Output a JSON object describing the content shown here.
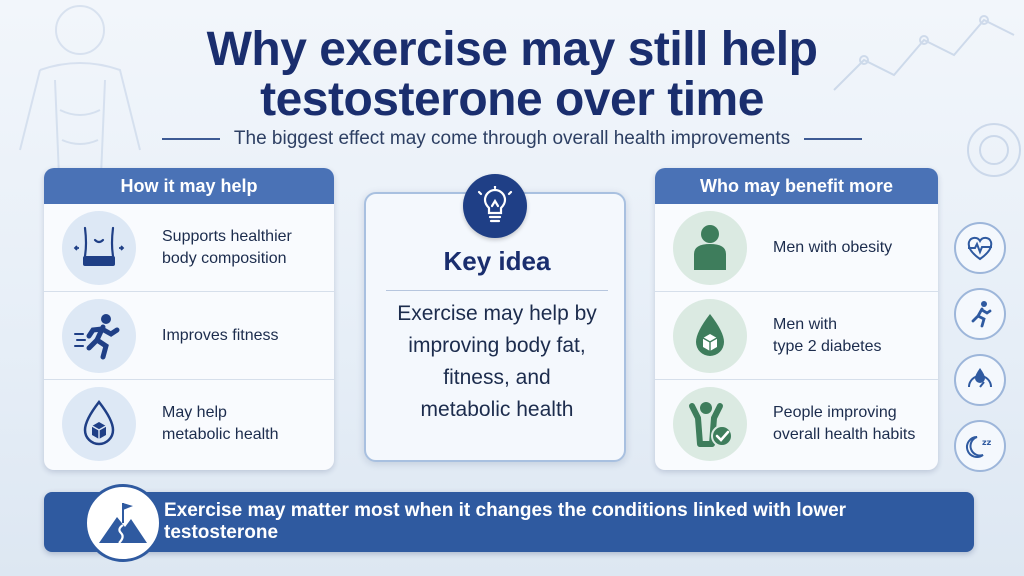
{
  "title": {
    "line1": "Why exercise may still help",
    "line2": "testosterone over time"
  },
  "subtitle": "The biggest effect may come through overall health improvements",
  "left_panel": {
    "heading": "How it may help",
    "items": [
      {
        "icon": "waist-icon",
        "label": "Supports healthier\nbody composition"
      },
      {
        "icon": "runner-icon",
        "label": "Improves fitness"
      },
      {
        "icon": "drop-cube-icon",
        "label": "May help\nmetabolic health"
      }
    ]
  },
  "center": {
    "icon": "lightbulb-icon",
    "title": "Key idea",
    "text": "Exercise may help by\nimproving body fat,\nfitness, and\nmetabolic health"
  },
  "right_panel": {
    "heading": "Who may benefit more",
    "items": [
      {
        "icon": "person-icon",
        "label": "Men with obesity"
      },
      {
        "icon": "drop-cube-icon",
        "label": "Men with\ntype 2 diabetes"
      },
      {
        "icon": "person-check-icon",
        "label": "People improving\noverall health habits"
      }
    ]
  },
  "side_icons": [
    "heartbeat-icon",
    "runner-icon",
    "drop-scale-icon",
    "moon-sleep-icon"
  ],
  "banner": {
    "icon": "mountain-flag-icon",
    "text": "Exercise may matter most when it changes the conditions linked with lower testosterone"
  },
  "colors": {
    "title": "#1a2e6e",
    "panel_header": "#4a72b6",
    "banner": "#2f5aa0",
    "left_circle": "#dde8f5",
    "right_circle": "#dbeae2",
    "green_icon": "#3e7d5c"
  }
}
